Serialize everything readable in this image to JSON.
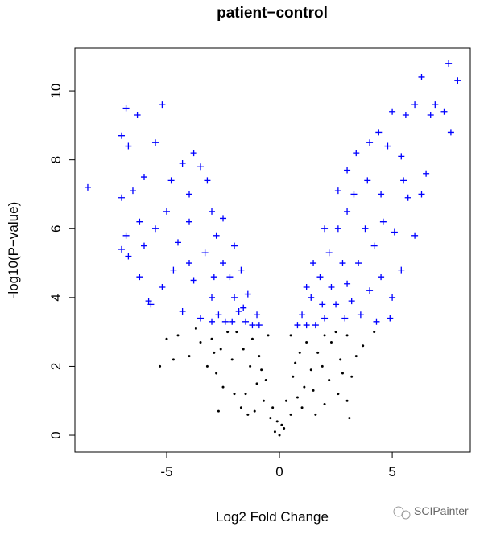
{
  "chart_data": {
    "type": "scatter",
    "title": "patient−control",
    "x_label": "Log2 Fold Change",
    "y_label": "-log10(P−value)",
    "xlim": [
      -9.07,
      8.46
    ],
    "ylim": [
      -0.49,
      11.24
    ],
    "xticks": [
      -5,
      0,
      5
    ],
    "yticks": [
      0,
      2,
      4,
      6,
      8,
      10
    ],
    "series": [
      {
        "color": "#0000ff",
        "marker": "plus",
        "x": [
          -8.5,
          -7.0,
          -6.8,
          -6.3,
          -5.2,
          -5.5,
          -6.7,
          -7.0,
          -6.5,
          -6.0,
          -6.2,
          -6.8,
          -7.0,
          -6.7,
          -6.0,
          -6.2,
          -5.7,
          -5.2,
          -5.5,
          -5.0,
          -4.8,
          -4.3,
          -3.8,
          -3.5,
          -4.0,
          -3.2,
          -4.5,
          -4.0,
          -3.8,
          -4.3,
          -3.5,
          -3.0,
          -2.8,
          -2.5,
          -2.2,
          -2.0,
          -1.8,
          -1.5,
          -1.2,
          -0.9,
          -2.5,
          -2.0,
          -1.7,
          -1.4,
          -1.0,
          -3.0,
          -2.7,
          -2.4,
          -3.3,
          -4.7,
          -5.8,
          -4.0,
          -3.0,
          -2.1,
          -1.6,
          -2.9,
          7.5,
          7.9,
          6.3,
          6.9,
          6.7,
          7.3,
          7.6,
          5.6,
          5.0,
          4.4,
          4.8,
          5.4,
          6.0,
          4.0,
          3.4,
          3.0,
          2.6,
          4.5,
          5.7,
          6.5,
          5.1,
          6.0,
          5.4,
          5.0,
          4.9,
          4.5,
          4.2,
          3.8,
          3.5,
          3.0,
          2.5,
          2.0,
          1.6,
          1.2,
          0.8,
          1.0,
          1.4,
          1.8,
          2.2,
          2.6,
          3.0,
          2.0,
          1.5,
          1.2,
          2.8,
          3.2,
          3.6,
          4.0,
          2.3,
          3.3,
          3.9,
          4.6,
          2.9,
          1.9,
          4.3,
          6.3,
          5.5
        ],
        "values": [
          7.2,
          8.7,
          9.5,
          9.3,
          9.6,
          8.5,
          8.4,
          6.9,
          7.1,
          7.5,
          6.2,
          5.8,
          5.4,
          5.2,
          5.5,
          4.6,
          3.8,
          4.3,
          6.0,
          6.5,
          7.4,
          7.9,
          8.2,
          7.8,
          7.0,
          7.4,
          5.6,
          5.0,
          4.5,
          3.6,
          3.4,
          6.5,
          5.8,
          5.0,
          4.6,
          4.0,
          3.6,
          3.3,
          3.2,
          3.2,
          6.3,
          5.5,
          4.8,
          4.1,
          3.5,
          4.0,
          3.5,
          3.3,
          5.3,
          4.8,
          3.9,
          6.2,
          3.3,
          3.3,
          3.7,
          4.6,
          10.8,
          10.3,
          10.4,
          9.6,
          9.3,
          9.4,
          8.8,
          9.3,
          9.4,
          8.8,
          8.4,
          8.1,
          9.6,
          8.5,
          8.2,
          7.7,
          7.1,
          7.0,
          6.9,
          7.6,
          5.9,
          5.8,
          4.8,
          4.0,
          3.4,
          4.6,
          5.5,
          6.0,
          5.0,
          4.4,
          3.8,
          3.4,
          3.2,
          3.2,
          3.2,
          3.5,
          4.0,
          4.6,
          5.3,
          6.0,
          6.5,
          6.0,
          5.0,
          4.3,
          5.0,
          3.9,
          3.5,
          4.2,
          4.3,
          7.0,
          7.4,
          6.2,
          3.4,
          3.8,
          3.3,
          7.0,
          7.4
        ]
      },
      {
        "color": "#000000",
        "marker": "dot",
        "x": [
          0,
          -0.2,
          0.2,
          -0.4,
          0.5,
          -0.7,
          0.8,
          -1.0,
          1.1,
          -1.3,
          1.4,
          -1.6,
          1.7,
          -1.9,
          2.0,
          -0.3,
          0.3,
          -0.6,
          0.6,
          -0.9,
          0.9,
          -0.5,
          0.5,
          -1.2,
          1.2,
          -2.3,
          2.3,
          -2.6,
          2.7,
          -3.0,
          3.0,
          -3.5,
          -4.5,
          -5.0,
          -4.0,
          -4.7,
          -5.3,
          -3.2,
          -2.8,
          -2.5,
          -2.7,
          -2.0,
          -1.7,
          -1.4,
          2.2,
          2.6,
          3.0,
          3.2,
          3.7,
          3.4,
          2.0,
          1.6,
          3.1,
          4.2,
          -3.7,
          -2.1,
          1.9,
          -1.1,
          1.0,
          -0.1,
          0.1,
          -0.8,
          0.7,
          -1.5,
          1.5,
          2.5,
          -2.9,
          2.8
        ],
        "values": [
          0,
          0.1,
          0.2,
          0.5,
          0.6,
          1.0,
          1.1,
          1.5,
          1.4,
          2.0,
          1.9,
          2.5,
          2.4,
          3.0,
          2.9,
          0.8,
          1.0,
          1.6,
          1.7,
          2.3,
          2.4,
          2.9,
          2.9,
          2.8,
          2.7,
          3.0,
          2.7,
          2.5,
          2.2,
          2.8,
          2.9,
          2.7,
          2.9,
          2.8,
          2.3,
          2.2,
          2.0,
          2.0,
          1.8,
          1.4,
          0.7,
          1.2,
          0.8,
          0.6,
          1.6,
          1.2,
          1.0,
          1.7,
          2.6,
          2.3,
          0.9,
          0.6,
          0.5,
          3.0,
          3.1,
          2.2,
          2.0,
          0.7,
          0.8,
          0.4,
          0.3,
          1.9,
          2.1,
          1.2,
          1.3,
          3.0,
          2.4,
          1.8
        ]
      }
    ]
  },
  "watermark": "SCIPainter"
}
